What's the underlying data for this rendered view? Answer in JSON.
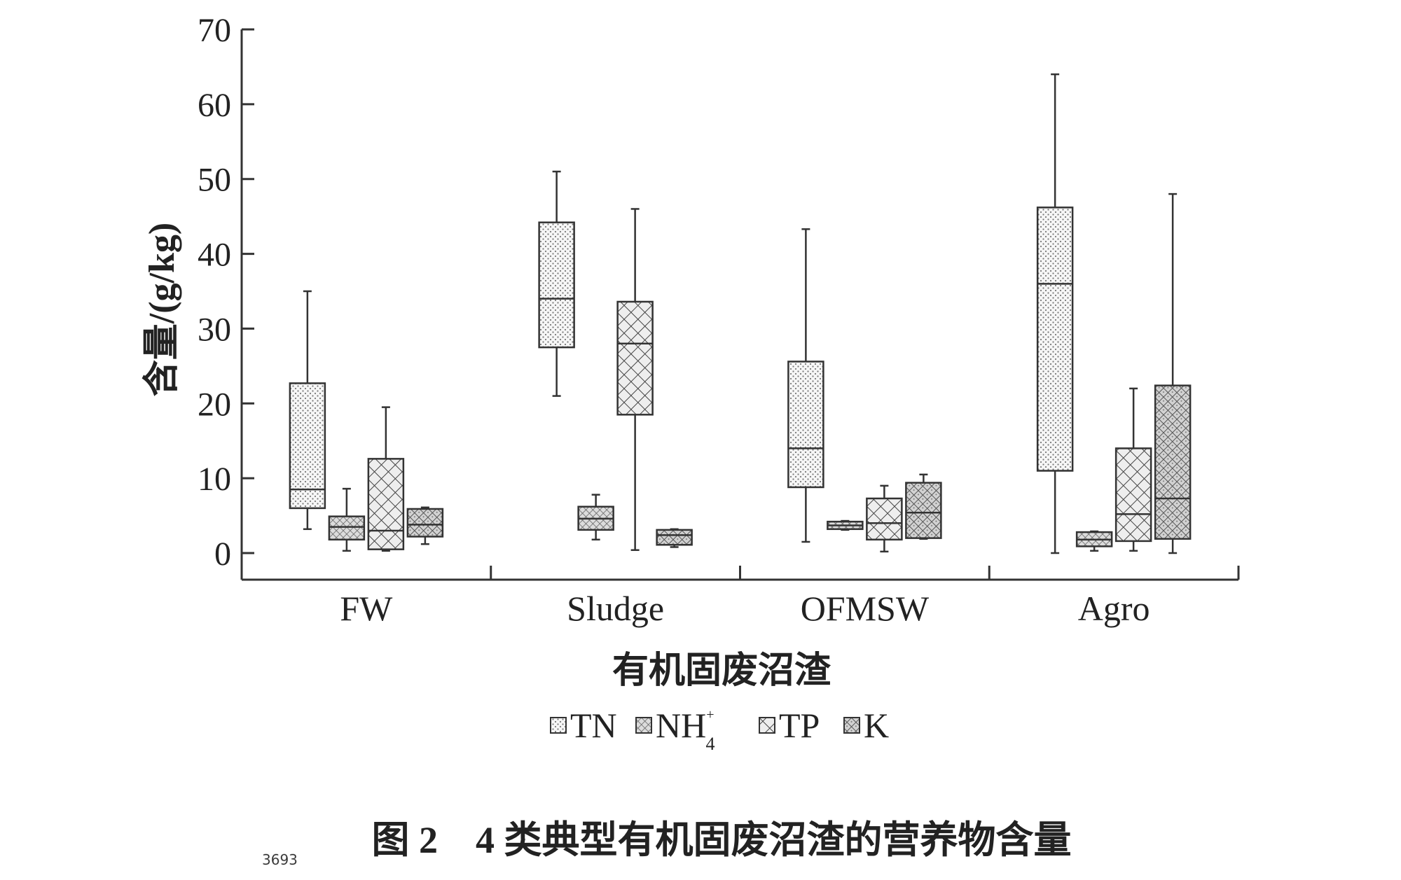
{
  "chart_data": {
    "type": "box",
    "ylabel": "含量/(g/kg)",
    "xlabel": "有机固废沼渣",
    "caption": "图 2　4 类典型有机固废沼渣的营养物含量",
    "ylim": [
      0,
      70
    ],
    "yticks": [
      0,
      10,
      20,
      30,
      40,
      50,
      60,
      70
    ],
    "categories": [
      "FW",
      "Sludge",
      "OFMSW",
      "Agro"
    ],
    "legend": {
      "position": "bottom-center",
      "items": [
        {
          "key": "TN",
          "text": "TN",
          "pattern": "dots"
        },
        {
          "key": "NH4",
          "text": "NH",
          "sub": "4",
          "sup": "+",
          "pattern": "crosshatch-fine"
        },
        {
          "key": "TP",
          "text": "TP",
          "pattern": "crosshatch"
        },
        {
          "key": "K",
          "text": "K",
          "pattern": "crosshatch-dense"
        }
      ]
    },
    "series": [
      {
        "key": "TN",
        "pattern": "dots",
        "boxes": [
          {
            "min": 3.2,
            "q1": 6,
            "median": 8.5,
            "q3": 22.7,
            "max": 35
          },
          {
            "min": 21,
            "q1": 27.5,
            "median": 34,
            "q3": 44.2,
            "max": 51
          },
          {
            "min": 1.5,
            "q1": 8.8,
            "median": 14,
            "q3": 25.6,
            "max": 43.3
          },
          {
            "min": 0,
            "q1": 11,
            "median": 36,
            "q3": 46.2,
            "max": 64
          }
        ]
      },
      {
        "key": "NH4",
        "pattern": "crosshatch-fine",
        "boxes": [
          {
            "min": 0.3,
            "q1": 1.8,
            "median": 3.5,
            "q3": 4.9,
            "max": 8.6
          },
          {
            "min": 1.8,
            "q1": 3.1,
            "median": 4.6,
            "q3": 6.2,
            "max": 7.8
          },
          {
            "min": 3.1,
            "q1": 3.2,
            "median": 3.7,
            "q3": 4.2,
            "max": 4.3
          },
          {
            "min": 0.3,
            "q1": 0.9,
            "median": 1.8,
            "q3": 2.8,
            "max": 2.9
          }
        ]
      },
      {
        "key": "TP",
        "pattern": "crosshatch",
        "boxes": [
          {
            "min": 0.3,
            "q1": 0.5,
            "median": 3,
            "q3": 12.6,
            "max": 19.5
          },
          {
            "min": 0.4,
            "q1": 18.5,
            "median": 28,
            "q3": 33.6,
            "max": 46
          },
          {
            "min": 0.2,
            "q1": 1.8,
            "median": 4,
            "q3": 7.3,
            "max": 9
          },
          {
            "min": 0.3,
            "q1": 1.6,
            "median": 5.2,
            "q3": 14,
            "max": 22
          }
        ]
      },
      {
        "key": "K",
        "pattern": "crosshatch-dense",
        "boxes": [
          {
            "min": 1.2,
            "q1": 2.2,
            "median": 3.8,
            "q3": 5.9,
            "max": 6.1
          },
          {
            "min": 0.8,
            "q1": 1.1,
            "median": 2.4,
            "q3": 3.1,
            "max": 3.2
          },
          {
            "min": 1.9,
            "q1": 2.0,
            "median": 5.4,
            "q3": 9.4,
            "max": 10.5
          },
          {
            "min": 0,
            "q1": 1.9,
            "median": 7.3,
            "q3": 22.4,
            "max": 48
          }
        ]
      }
    ]
  },
  "watermark": "3693"
}
